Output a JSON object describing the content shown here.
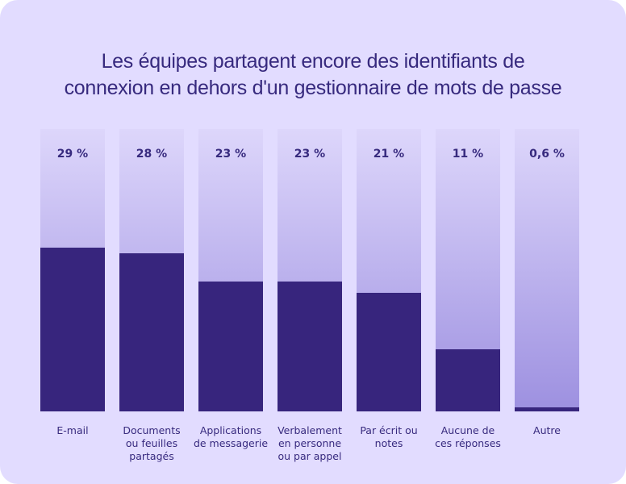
{
  "chart_data": {
    "type": "bar",
    "title_lines": [
      "Les équipes partagent encore des identifiants de",
      "connexion en dehors d'un gestionnaire de mots de passe"
    ],
    "categories": [
      [
        "E-mail"
      ],
      [
        "Documents",
        "ou feuilles",
        "partagés"
      ],
      [
        "Applications",
        "de messagerie"
      ],
      [
        "Verbalement",
        "en personne",
        "ou par appel"
      ],
      [
        "Par écrit ou",
        "notes"
      ],
      [
        "Aucune de",
        "ces réponses"
      ],
      [
        "Autre"
      ]
    ],
    "values": [
      29,
      28,
      23,
      23,
      21,
      11,
      0.6
    ],
    "value_labels": [
      "29 %",
      "28 %",
      "23 %",
      "23 %",
      "21 %",
      "11 %",
      "0,6 %"
    ],
    "ylim": [
      0,
      50
    ],
    "xlabel": "",
    "ylabel": "",
    "grid": false,
    "legend": "none",
    "colors": {
      "background": "#e2dcff",
      "bar": "#37257d",
      "track_top": "#ddd6fb",
      "track_bottom": "#9d90e0",
      "text": "#372a7e"
    }
  }
}
